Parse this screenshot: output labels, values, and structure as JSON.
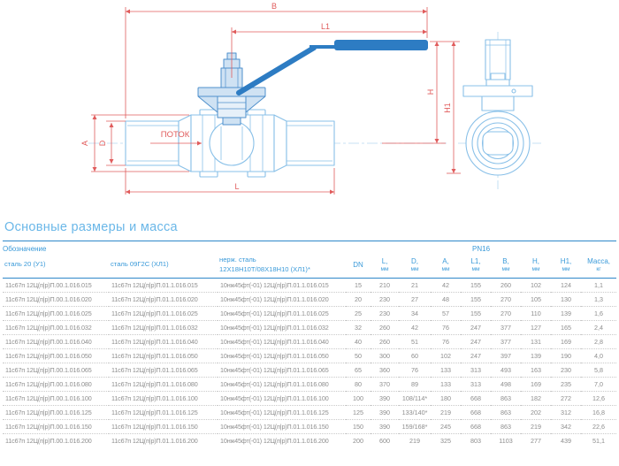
{
  "section": {
    "title": "Основные размеры и масса"
  },
  "drawing": {
    "flow_label": "ПОТОК",
    "dimension_labels": {
      "B": "B",
      "L1": "L1",
      "H": "H",
      "H1": "H1",
      "A": "A",
      "D": "D",
      "L": "L"
    }
  },
  "table": {
    "designation_header": "Обозначение",
    "pn_header": "PN16",
    "steel_col_1": "сталь 20 (У1)",
    "steel_col_2": "сталь 09Г2С (ХЛ1)",
    "steel_col_3_line1": "нерж. сталь",
    "steel_col_3_line2": "12Х18Н10Т/08Х18Н10 (ХЛ1)*",
    "dim_columns": [
      {
        "name": "DN",
        "unit": ""
      },
      {
        "name": "L,",
        "unit": "мм"
      },
      {
        "name": "D,",
        "unit": "мм"
      },
      {
        "name": "A,",
        "unit": "мм"
      },
      {
        "name": "L1,",
        "unit": "мм"
      },
      {
        "name": "B,",
        "unit": "мм"
      },
      {
        "name": "H,",
        "unit": "мм"
      },
      {
        "name": "H1,",
        "unit": "мм"
      },
      {
        "name": "Масса,",
        "unit": "кг"
      }
    ],
    "rows": [
      [
        "11с67п 12Ц(п|р)П.00.1.016.015",
        "11с67п 12Ц(п|р)П.01.1.016.015",
        "10нж45фт(-01) 12Ц(п|р)П.01.1.016.015",
        "15",
        "210",
        "21",
        "42",
        "155",
        "260",
        "102",
        "124",
        "1,1"
      ],
      [
        "11с67п 12Ц(п|р)П.00.1.016.020",
        "11с67п 12Ц(п|р)П.01.1.016.020",
        "10нж45фт(-01) 12Ц(п|р)П.01.1.016.020",
        "20",
        "230",
        "27",
        "48",
        "155",
        "270",
        "105",
        "130",
        "1,3"
      ],
      [
        "11с67п 12Ц(п|р)П.00.1.016.025",
        "11с67п 12Ц(п|р)П.01.1.016.025",
        "10нж45фт(-01) 12Ц(п|р)П.01.1.016.025",
        "25",
        "230",
        "34",
        "57",
        "155",
        "270",
        "110",
        "139",
        "1,6"
      ],
      [
        "11с67п 12Ц(п|р)П.00.1.016.032",
        "11с67п 12Ц(п|р)П.01.1.016.032",
        "10нж45фт(-01) 12Ц(п|р)П.01.1.016.032",
        "32",
        "260",
        "42",
        "76",
        "247",
        "377",
        "127",
        "165",
        "2,4"
      ],
      [
        "11с67п 12Ц(п|р)П.00.1.016.040",
        "11с67п 12Ц(п|р)П.01.1.016.040",
        "10нж45фт(-01) 12Ц(п|р)П.01.1.016.040",
        "40",
        "260",
        "51",
        "76",
        "247",
        "377",
        "131",
        "169",
        "2,8"
      ],
      [
        "11с67п 12Ц(п|р)П.00.1.016.050",
        "11с67п 12Ц(п|р)П.01.1.016.050",
        "10нж45фт(-01) 12Ц(п|р)П.01.1.016.050",
        "50",
        "300",
        "60",
        "102",
        "247",
        "397",
        "139",
        "190",
        "4,0"
      ],
      [
        "11с67п 12Ц(п|р)П.00.1.016.065",
        "11с67п 12Ц(п|р)П.01.1.016.065",
        "10нж45фт(-01) 12Ц(п|р)П.01.1.016.065",
        "65",
        "360",
        "76",
        "133",
        "313",
        "493",
        "163",
        "230",
        "5,8"
      ],
      [
        "11с67п 12Ц(п|р)П.00.1.016.080",
        "11с67п 12Ц(п|р)П.01.1.016.080",
        "10нж45фт(-01) 12Ц(п|р)П.01.1.016.080",
        "80",
        "370",
        "89",
        "133",
        "313",
        "498",
        "169",
        "235",
        "7,0"
      ],
      [
        "11с67п 12Ц(п|р)П.00.1.016.100",
        "11с67п 12Ц(п|р)П.01.1.016.100",
        "10нж45фт(-01) 12Ц(п|р)П.01.1.016.100",
        "100",
        "390",
        "108/114*",
        "180",
        "668",
        "863",
        "182",
        "272",
        "12,6"
      ],
      [
        "11с67п 12Ц(п|р)П.00.1.016.125",
        "11с67п 12Ц(п|р)П.01.1.016.125",
        "10нж45фт(-01) 12Ц(п|р)П.01.1.016.125",
        "125",
        "390",
        "133/140*",
        "219",
        "668",
        "863",
        "202",
        "312",
        "16,8"
      ],
      [
        "11с67п 12Ц(п|р)П.00.1.016.150",
        "11с67п 12Ц(п|р)П.01.1.016.150",
        "10нж45фт(-01) 12Ц(п|р)П.01.1.016.150",
        "150",
        "390",
        "159/168*",
        "245",
        "668",
        "863",
        "219",
        "342",
        "22,6"
      ],
      [
        "11с67п 12Ц(п|р)П.00.1.016.200",
        "11с67п 12Ц(п|р)П.01.1.016.200",
        "10нж45фт(-01) 12Ц(п|р)П.01.1.016.200",
        "200",
        "600",
        "219",
        "325",
        "803",
        "1103",
        "277",
        "439",
        "51,1"
      ]
    ]
  }
}
